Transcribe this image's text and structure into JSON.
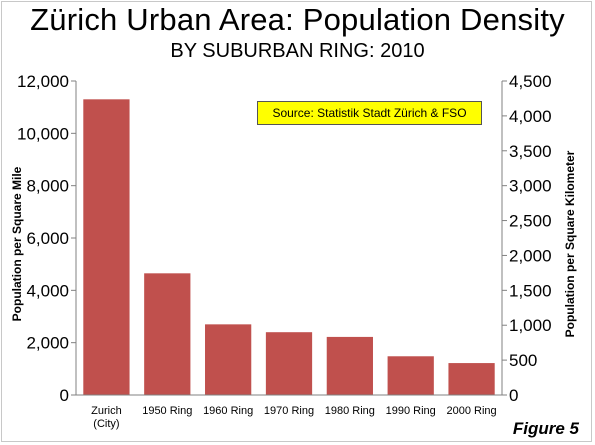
{
  "chart_data": {
    "type": "bar",
    "title": "Zürich Urban Area: Population Density",
    "subtitle": "BY SUBURBAN RING: 2010",
    "categories": [
      [
        "Zurich",
        "(City)"
      ],
      [
        "1950 Ring"
      ],
      [
        "1960 Ring"
      ],
      [
        "1970 Ring"
      ],
      [
        "1980 Ring"
      ],
      [
        "1990 Ring"
      ],
      [
        "2000 Ring"
      ]
    ],
    "values": [
      11300,
      4650,
      2700,
      2400,
      2220,
      1480,
      1220
    ],
    "ylabel": "Population per Square Mile",
    "ylabel_right": "Population per Square Kilometer",
    "ylim": [
      0,
      12000
    ],
    "yticks": [
      "0",
      "2,000",
      "4,000",
      "6,000",
      "8,000",
      "10,000",
      "12,000"
    ],
    "ylim_right": [
      0,
      4500
    ],
    "yticks_right": [
      "0",
      "500",
      "1,000",
      "1,500",
      "2,000",
      "2,500",
      "3,000",
      "3,500",
      "4,000",
      "4,500"
    ],
    "bar_color": "#c0504d",
    "grid": false,
    "annotation": "Source: Statistik Stadt Zürich & FSO"
  },
  "figure_label": "Figure 5"
}
